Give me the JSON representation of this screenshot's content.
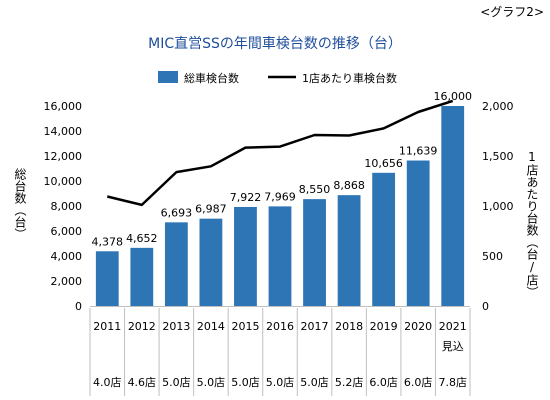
{
  "corner_label": "<グラフ2>",
  "chart_data": {
    "type": "bar",
    "title": "MIC直営SSの年間車検台数の推移（台）",
    "categories": [
      "2011",
      "2012",
      "2013",
      "2014",
      "2015",
      "2016",
      "2017",
      "2018",
      "2019",
      "2020",
      "2021\n見込"
    ],
    "stores": [
      "4.0店",
      "4.6店",
      "5.0店",
      "5.0店",
      "5.0店",
      "5.0店",
      "5.0店",
      "5.2店",
      "6.0店",
      "6.0店",
      "7.8店"
    ],
    "series": [
      {
        "name": "総車検台数",
        "type": "bar",
        "axis": "left",
        "color": "#2e75b6",
        "values": [
          4378,
          4652,
          6693,
          6987,
          7922,
          7969,
          8550,
          8868,
          10656,
          11639,
          16000
        ],
        "labels": [
          "4,378",
          "4,652",
          "6,693",
          "6,987",
          "7,922",
          "7,969",
          "8,550",
          "8,868",
          "10,656",
          "11,639",
          "16,000"
        ]
      },
      {
        "name": "1店あたり車検台数",
        "type": "line",
        "axis": "right",
        "color": "#000000",
        "values": [
          1095,
          1011,
          1339,
          1397,
          1584,
          1594,
          1710,
          1705,
          1776,
          1940,
          2051
        ]
      }
    ],
    "ylabel": "総台数（台）",
    "y2label": "1店あたり台数（台/店）",
    "ylim": [
      0,
      16000
    ],
    "yticks": [
      "0",
      "2,000",
      "4,000",
      "6,000",
      "8,000",
      "10,000",
      "12,000",
      "14,000",
      "16,000"
    ],
    "y2lim": [
      0,
      2000
    ],
    "y2ticks": [
      "0",
      "500",
      "1,000",
      "1,500",
      "2,000"
    ],
    "legend": "top",
    "grid": false
  }
}
